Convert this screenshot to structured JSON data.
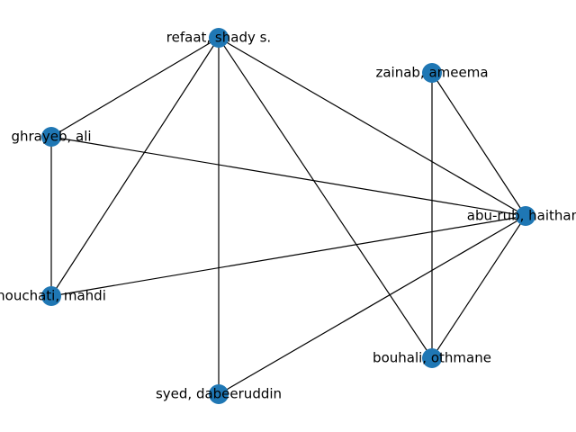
{
  "graph": {
    "node_color": "#1f77b4",
    "edge_color": "#000000",
    "nodes": [
      {
        "id": "refaat",
        "label": "refaat, shady s."
      },
      {
        "id": "zainab",
        "label": "zainab, ameema"
      },
      {
        "id": "ghrayeb",
        "label": "ghrayeb, ali"
      },
      {
        "id": "aburub",
        "label": "abu-rub, haitham"
      },
      {
        "id": "houchati",
        "label": "houchati, mahdi"
      },
      {
        "id": "bouhali",
        "label": "bouhali, othmane"
      },
      {
        "id": "syed",
        "label": "syed, dabeeruddin"
      }
    ],
    "edges": [
      [
        "refaat",
        "ghrayeb"
      ],
      [
        "refaat",
        "houchati"
      ],
      [
        "refaat",
        "syed"
      ],
      [
        "refaat",
        "bouhali"
      ],
      [
        "refaat",
        "aburub"
      ],
      [
        "zainab",
        "aburub"
      ],
      [
        "zainab",
        "bouhali"
      ],
      [
        "ghrayeb",
        "houchati"
      ],
      [
        "ghrayeb",
        "aburub"
      ],
      [
        "houchati",
        "aburub"
      ],
      [
        "syed",
        "aburub"
      ],
      [
        "bouhali",
        "aburub"
      ]
    ]
  }
}
